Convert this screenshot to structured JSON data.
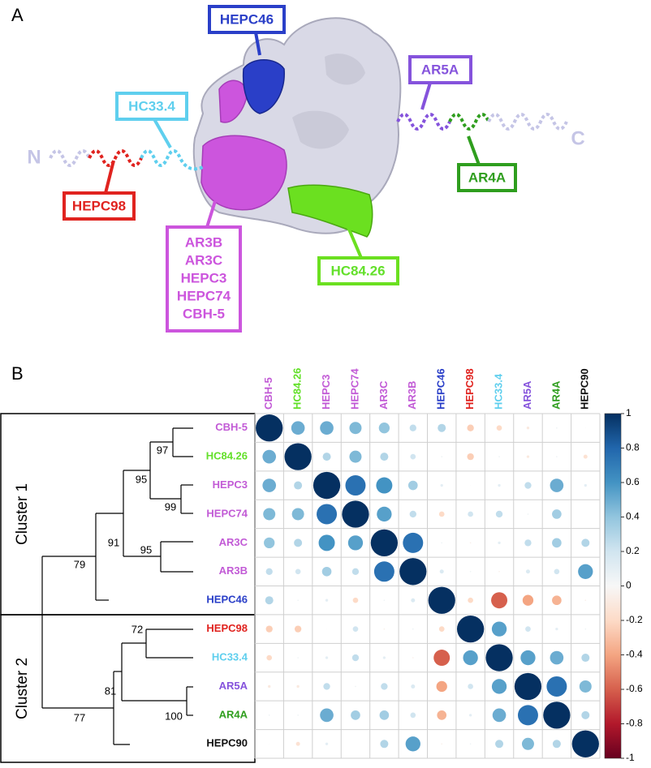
{
  "panel_a": {
    "label": "A",
    "termini": [
      "N",
      "C"
    ],
    "epitopes": {
      "hepc46": "HEPC46",
      "hc33_4": "HC33.4",
      "ar5a": "AR5A",
      "ar4a": "AR4A",
      "hepc98": "HEPC98",
      "hc84_26": "HC84.26",
      "cluster_box": [
        "AR3B",
        "AR3C",
        "HEPC3",
        "HEPC74",
        "CBH-5"
      ]
    }
  },
  "chart_data": {
    "type": "corrplot",
    "panel_label": "B",
    "labels": [
      "CBH-5",
      "HC84.26",
      "HEPC3",
      "HEPC74",
      "AR3C",
      "AR3B",
      "HEPC46",
      "HEPC98",
      "HC33.4",
      "AR5A",
      "AR4A",
      "HEPC90"
    ],
    "label_colors": [
      "#c25bd6",
      "#63e02a",
      "#c25bd6",
      "#c25bd6",
      "#c25bd6",
      "#c25bd6",
      "#2a3fc8",
      "#e0231f",
      "#5fcfee",
      "#8553dc",
      "#2f9e1e",
      "#111111"
    ],
    "matrix": [
      [
        1,
        0.5,
        0.5,
        0.45,
        0.4,
        0.25,
        0.3,
        -0.25,
        -0.2,
        -0.1,
        0.05,
        0.02
      ],
      [
        0.5,
        1,
        0.3,
        0.45,
        0.3,
        0.2,
        0.05,
        -0.25,
        0.05,
        -0.1,
        0.05,
        -0.15
      ],
      [
        0.5,
        0.3,
        1,
        0.75,
        0.6,
        0.35,
        0.1,
        0.02,
        0.1,
        0.25,
        0.5,
        0.1
      ],
      [
        0.45,
        0.45,
        0.75,
        1,
        0.55,
        0.25,
        -0.2,
        0.2,
        0.25,
        0.05,
        0.35,
        0
      ],
      [
        0.4,
        0.3,
        0.6,
        0.55,
        1,
        0.75,
        0.05,
        -0.05,
        0.1,
        0.25,
        0.35,
        0.3
      ],
      [
        0.25,
        0.2,
        0.35,
        0.25,
        0.75,
        1,
        0.15,
        0.05,
        -0.05,
        0.15,
        0.2,
        0.55
      ],
      [
        0.3,
        0.05,
        0.1,
        -0.2,
        0.05,
        0.15,
        1,
        -0.2,
        -0.6,
        -0.4,
        -0.35,
        -0.05
      ],
      [
        -0.25,
        -0.25,
        0.02,
        0.2,
        -0.05,
        0.05,
        -0.2,
        1,
        0.55,
        0.2,
        0.1,
        0.05
      ],
      [
        -0.2,
        0.05,
        0.1,
        0.25,
        0.1,
        -0.05,
        -0.6,
        0.55,
        1,
        0.55,
        0.5,
        0.3
      ],
      [
        -0.1,
        -0.1,
        0.25,
        0.05,
        0.25,
        0.15,
        -0.4,
        0.2,
        0.55,
        1,
        0.75,
        0.45
      ],
      [
        0.05,
        0.05,
        0.5,
        0.35,
        0.35,
        0.2,
        -0.35,
        0.1,
        0.5,
        0.75,
        1,
        0.3
      ],
      [
        0.02,
        -0.15,
        0.1,
        0,
        0.3,
        0.55,
        -0.05,
        0.05,
        0.3,
        0.45,
        0.3,
        1
      ]
    ],
    "colormap": "RdBu",
    "clim": [
      -1,
      1
    ],
    "colorbar_ticks": [
      1,
      0.8,
      0.6,
      0.4,
      0.2,
      0,
      -0.2,
      -0.4,
      -0.6,
      -0.8,
      -1
    ],
    "clusters": [
      "Cluster 1",
      "Cluster 2"
    ],
    "bootstrap": [
      97,
      95,
      99,
      91,
      95,
      79,
      72,
      81,
      100,
      77
    ]
  }
}
